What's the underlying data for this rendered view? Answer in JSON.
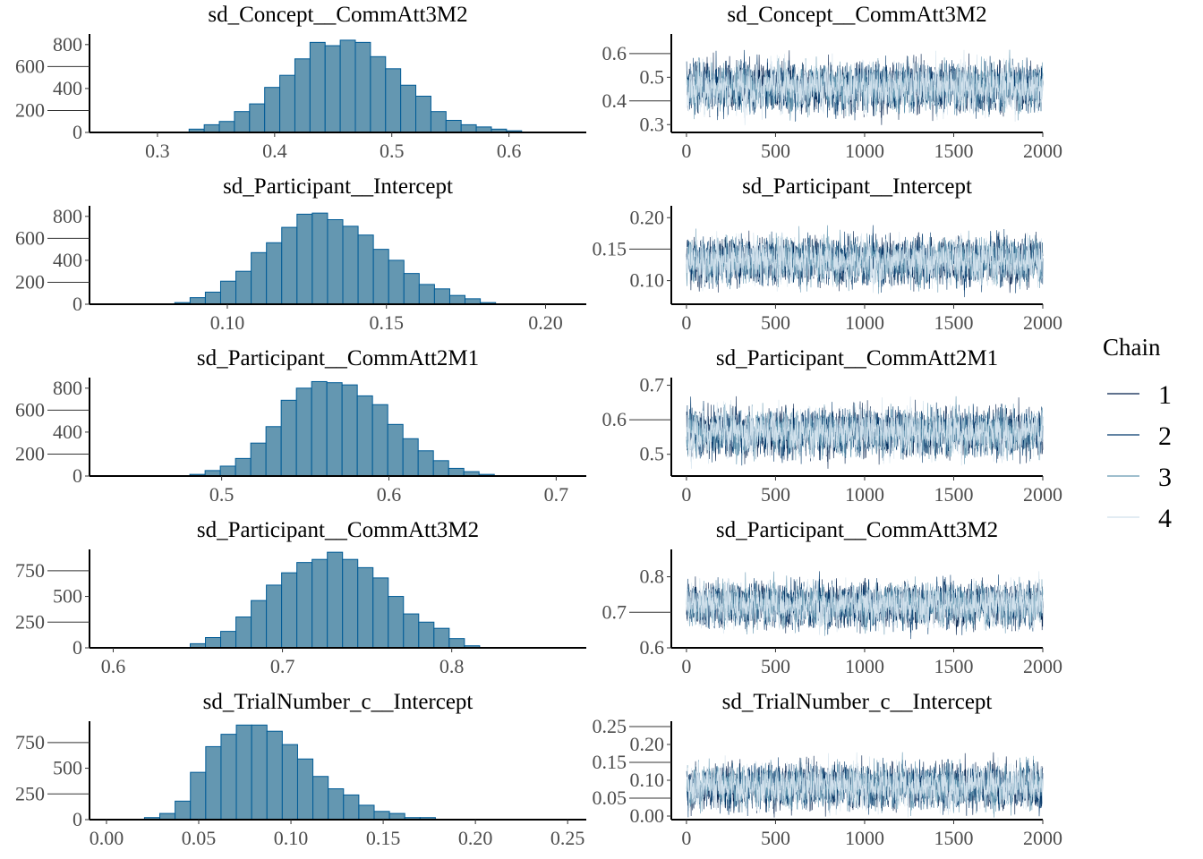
{
  "chart_data": [
    {
      "type": "bar",
      "panel": "histogram",
      "title": "sd_Concept__CommAtt3M2",
      "xlim": [
        0.242,
        0.666
      ],
      "xticks": [
        "0.3",
        "0.4",
        "0.5",
        "0.6"
      ],
      "ylim": [
        0,
        880
      ],
      "yticks": [
        "0",
        "200",
        "400",
        "600",
        "800"
      ],
      "bin_start": 0.327,
      "bin_width": 0.0129,
      "values": [
        30,
        70,
        100,
        190,
        260,
        410,
        520,
        670,
        820,
        790,
        840,
        820,
        690,
        580,
        430,
        330,
        190,
        110,
        70,
        50,
        30,
        15
      ]
    },
    {
      "type": "bar",
      "panel": "histogram",
      "title": "sd_Participant__Intercept",
      "xlim": [
        0.0567,
        0.2128
      ],
      "xticks": [
        "0.10",
        "0.15",
        "0.20"
      ],
      "ylim": [
        0,
        880
      ],
      "yticks": [
        "0",
        "200",
        "400",
        "600",
        "800"
      ],
      "bin_start": 0.0835,
      "bin_width": 0.0048,
      "values": [
        15,
        60,
        110,
        210,
        300,
        470,
        560,
        700,
        820,
        830,
        770,
        710,
        630,
        500,
        400,
        280,
        180,
        140,
        80,
        50,
        15
      ]
    },
    {
      "type": "bar",
      "panel": "histogram",
      "title": "sd_Participant__CommAtt2M1",
      "xlim": [
        0.421,
        0.718
      ],
      "xticks": [
        "0.5",
        "0.6",
        "0.7"
      ],
      "ylim": [
        0,
        880
      ],
      "yticks": [
        "0",
        "200",
        "400",
        "600",
        "800"
      ],
      "bin_start": 0.481,
      "bin_width": 0.0091,
      "values": [
        15,
        50,
        90,
        160,
        300,
        450,
        690,
        800,
        860,
        850,
        830,
        730,
        650,
        470,
        340,
        230,
        140,
        70,
        40,
        15
      ]
    },
    {
      "type": "bar",
      "panel": "histogram",
      "title": "sd_Participant__CommAtt3M2",
      "xlim": [
        0.586,
        0.8795
      ],
      "xticks": [
        "0.6",
        "0.7",
        "0.8"
      ],
      "ylim": [
        0,
        940
      ],
      "yticks": [
        "0",
        "250",
        "500",
        "750"
      ],
      "bin_start": 0.6455,
      "bin_width": 0.009,
      "values": [
        40,
        100,
        160,
        300,
        460,
        610,
        730,
        830,
        860,
        930,
        860,
        780,
        680,
        500,
        330,
        250,
        190,
        90,
        20
      ]
    },
    {
      "type": "bar",
      "panel": "histogram",
      "title": "sd_TrialNumber_c__Intercept",
      "xlim": [
        -0.0092,
        0.2601
      ],
      "xticks": [
        "0.00",
        "0.05",
        "0.10",
        "0.15",
        "0.20",
        "0.25"
      ],
      "ylim": [
        0,
        940
      ],
      "yticks": [
        "0",
        "250",
        "500",
        "750"
      ],
      "bin_start": 0.0206,
      "bin_width": 0.0083,
      "values": [
        20,
        60,
        180,
        460,
        710,
        830,
        920,
        920,
        860,
        730,
        590,
        420,
        300,
        240,
        140,
        80,
        60,
        20,
        20
      ]
    },
    {
      "type": "line",
      "panel": "trace",
      "title": "sd_Concept__CommAtt3M2",
      "xlim": [
        -85,
        2000
      ],
      "xticks": [
        "0",
        "500",
        "1000",
        "1500",
        "2000"
      ],
      "ylim": [
        0.267,
        0.675
      ],
      "yticks": [
        "0.3",
        "0.4",
        "0.5",
        "0.6"
      ],
      "iterations": 2000,
      "mean": 0.46,
      "sd": 0.05
    },
    {
      "type": "line",
      "panel": "trace",
      "title": "sd_Participant__Intercept",
      "xlim": [
        -85,
        2000
      ],
      "xticks": [
        "0",
        "500",
        "1000",
        "1500",
        "2000"
      ],
      "ylim": [
        0.0625,
        0.216
      ],
      "yticks": [
        "0.10",
        "0.15",
        "0.20"
      ],
      "iterations": 2000,
      "mean": 0.132,
      "sd": 0.018
    },
    {
      "type": "line",
      "panel": "trace",
      "title": "sd_Participant__CommAtt2M1",
      "xlim": [
        -85,
        2000
      ],
      "xticks": [
        "0",
        "500",
        "1000",
        "1500",
        "2000"
      ],
      "ylim": [
        0.437,
        0.717
      ],
      "yticks": [
        "0.5",
        "0.6",
        "0.7"
      ],
      "iterations": 2000,
      "mean": 0.565,
      "sd": 0.033
    },
    {
      "type": "line",
      "panel": "trace",
      "title": "sd_Participant__CommAtt3M2",
      "xlim": [
        -85,
        2000
      ],
      "xticks": [
        "0",
        "500",
        "1000",
        "1500",
        "2000"
      ],
      "ylim": [
        0.6,
        0.872
      ],
      "yticks": [
        "0.6",
        "0.7",
        "0.8"
      ],
      "iterations": 2000,
      "mean": 0.722,
      "sd": 0.03
    },
    {
      "type": "line",
      "panel": "trace",
      "title": "sd_TrialNumber_c__Intercept",
      "xlim": [
        -85,
        2000
      ],
      "xticks": [
        "0",
        "500",
        "1000",
        "1500",
        "2000"
      ],
      "ylim": [
        -0.01,
        0.26
      ],
      "yticks": [
        "0.00",
        "0.05",
        "0.10",
        "0.15",
        "0.20",
        "0.25"
      ],
      "iterations": 2000,
      "mean": 0.085,
      "sd": 0.03
    }
  ],
  "legend": {
    "title": "Chain",
    "placement": "right",
    "items": [
      {
        "label": "1",
        "color": "#011f4b"
      },
      {
        "label": "2",
        "color": "#03396c"
      },
      {
        "label": "3",
        "color": "#6497b1"
      },
      {
        "label": "4",
        "color": "#d1e1ec"
      }
    ]
  },
  "colors": {
    "hist_fill": "#6497b1",
    "hist_outline": "#005b96",
    "tick_text": "#4d4d4d"
  }
}
